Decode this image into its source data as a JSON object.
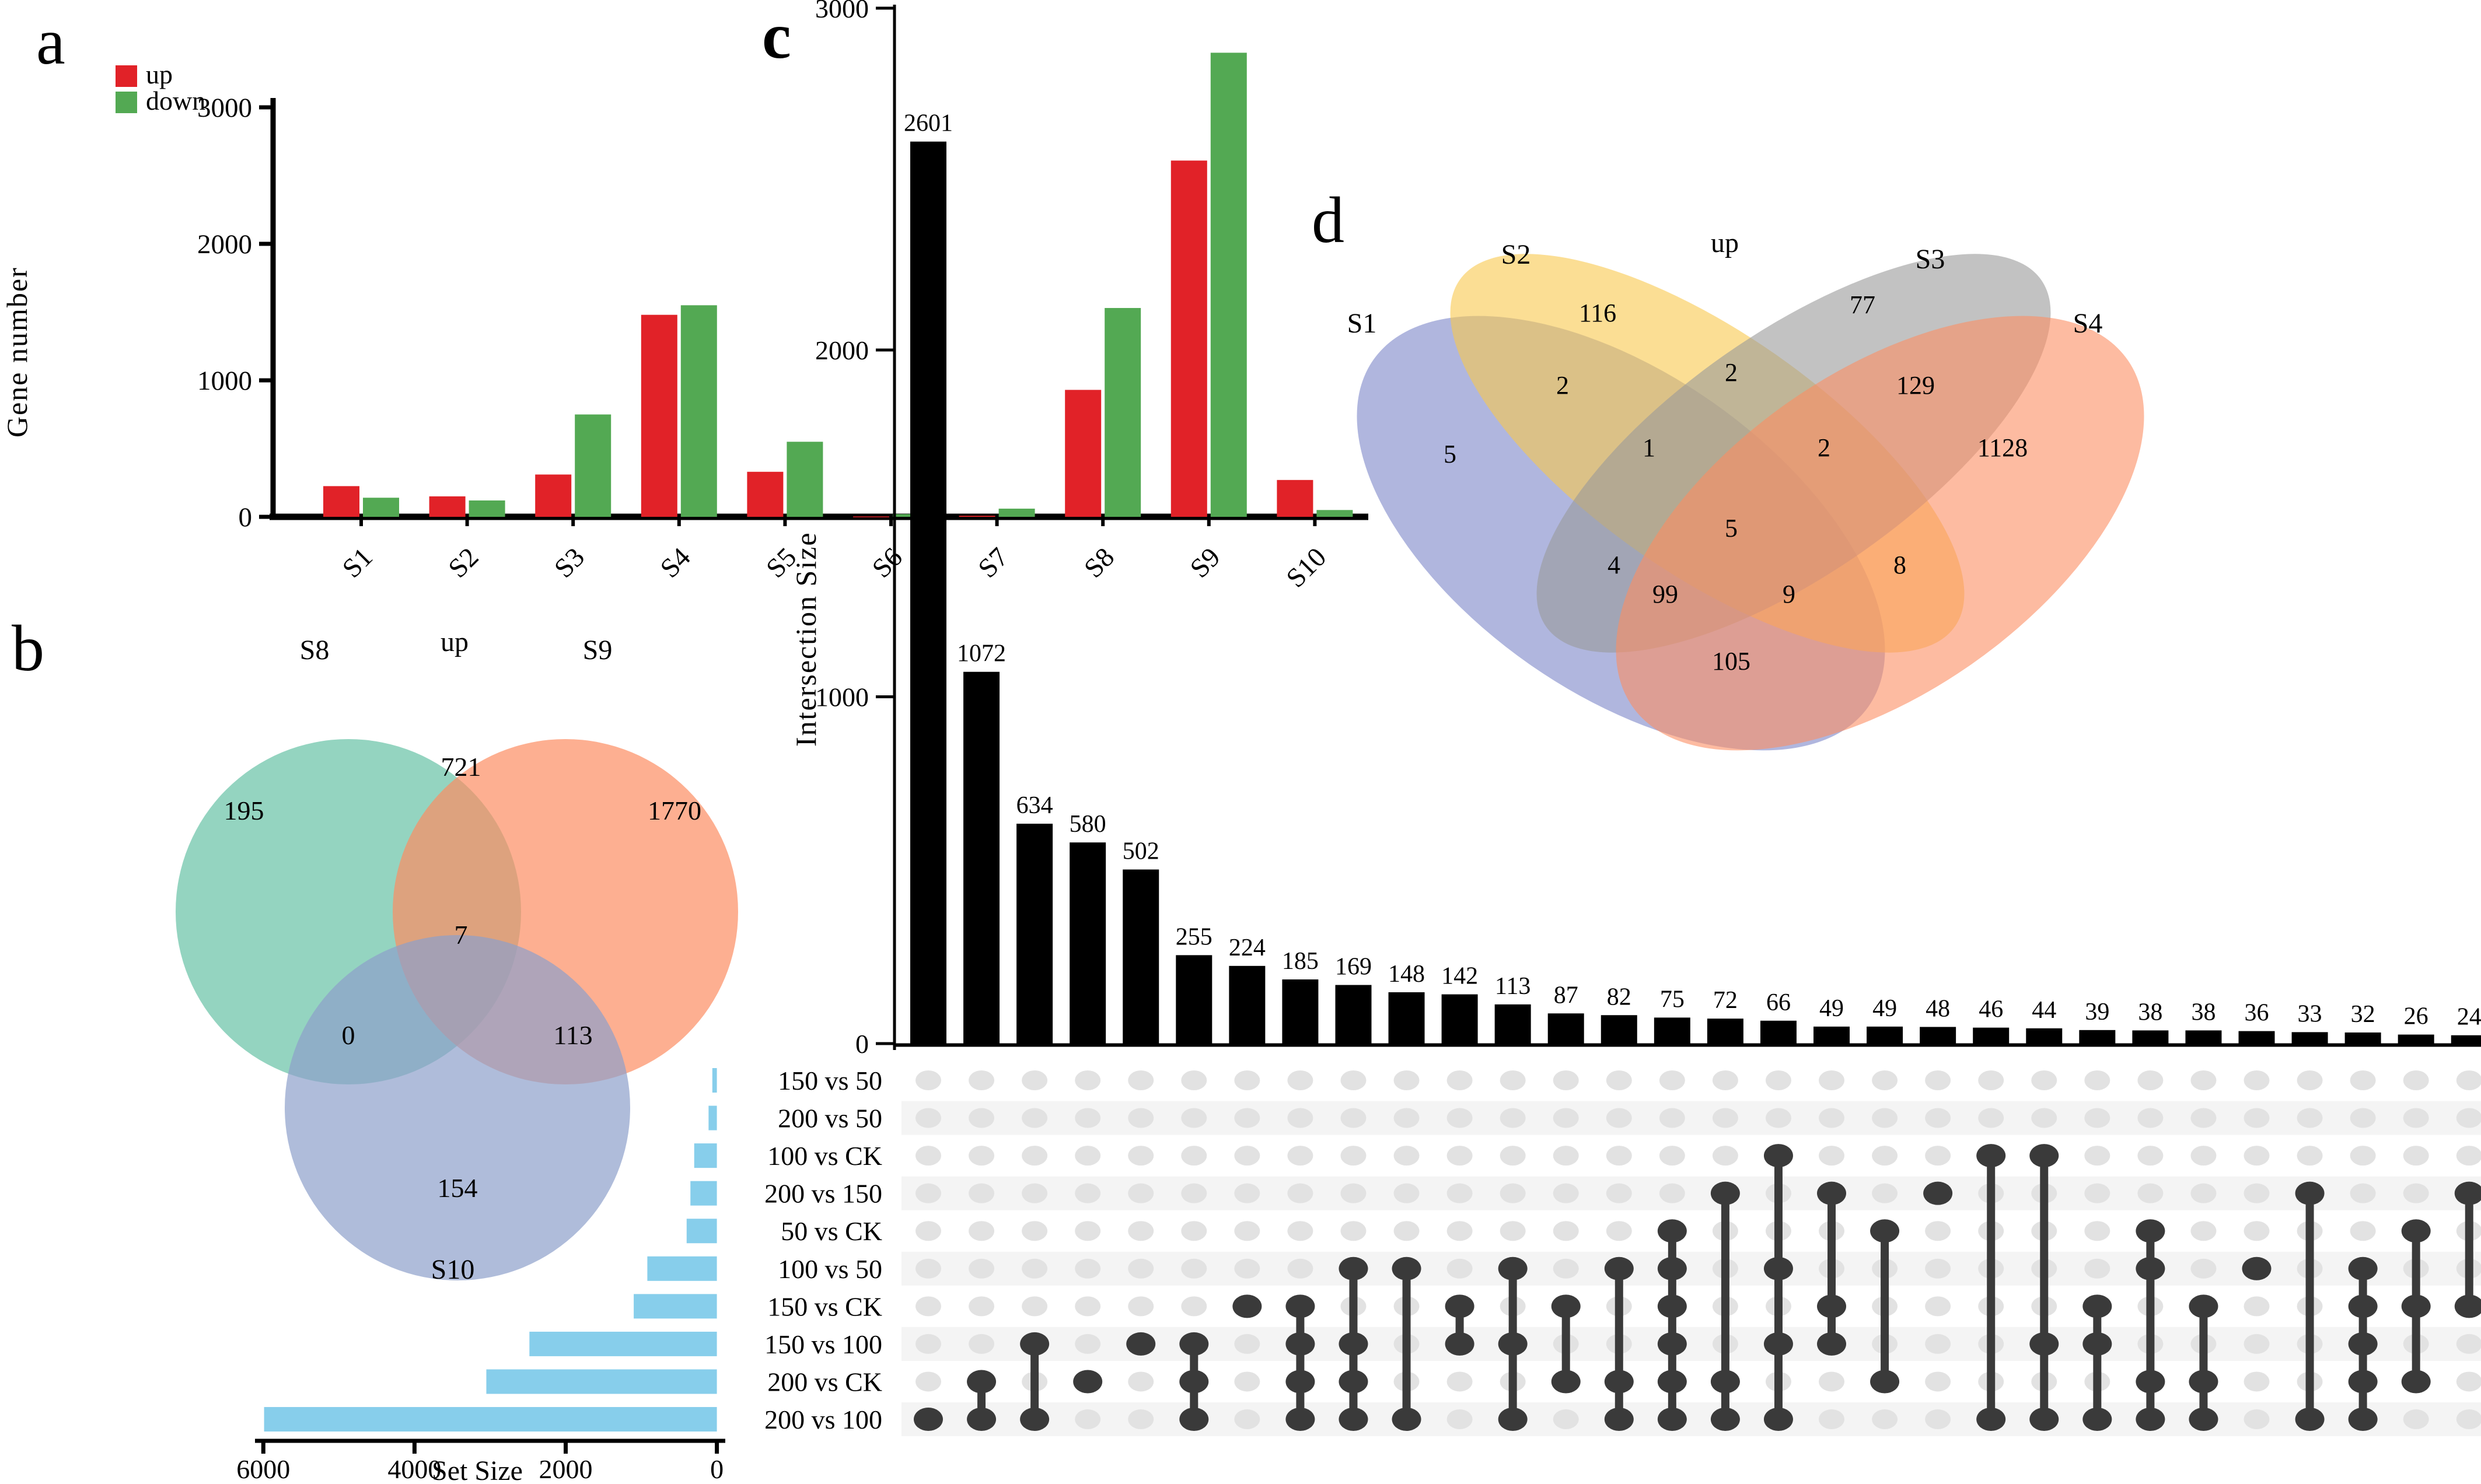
{
  "figure_labels": {
    "a": "a",
    "b": "b",
    "c": "c",
    "d": "d"
  },
  "axis_titles": {
    "gene_number": "Gene number",
    "intersection_size": "Intersection Size",
    "set_size": "Set Size"
  },
  "chart_data": [
    {
      "id": "a",
      "type": "bar",
      "ylabel": "Gene number",
      "ylim": [
        0,
        3400
      ],
      "yticks": [
        0,
        1000,
        2000,
        3000
      ],
      "categories": [
        "S1",
        "S2",
        "S3",
        "S4",
        "S5",
        "S6",
        "S7",
        "S8",
        "S9",
        "S10"
      ],
      "series": [
        {
          "name": "up",
          "color": "#E12228",
          "values": [
            225,
            150,
            310,
            1480,
            330,
            3,
            8,
            930,
            2610,
            270
          ]
        },
        {
          "name": "down",
          "color": "#53A953",
          "values": [
            140,
            120,
            750,
            1550,
            550,
            20,
            60,
            1530,
            3400,
            50
          ]
        }
      ],
      "legend_position": "top-left",
      "grid": false
    },
    {
      "id": "b",
      "type": "venn3",
      "title": "up",
      "sets": [
        "S8",
        "S9",
        "S10"
      ],
      "colors": [
        "#66C2A5",
        "#FC8D62",
        "#8DA0CB"
      ],
      "regions": {
        "S8": 195,
        "S9": 1770,
        "S10": 154,
        "S8∩S9": 721,
        "S8∩S10": 0,
        "S9∩S10": 113,
        "S8∩S9∩S10": 7
      }
    },
    {
      "id": "c",
      "type": "upset",
      "ylabel": "Intersection Size",
      "ylim": [
        0,
        3000
      ],
      "yticks": [
        0,
        1000,
        2000,
        3000
      ],
      "set_size_axis": {
        "label": "Set Size",
        "ticks": [
          6000,
          4000,
          2000,
          0
        ],
        "max": 6200
      },
      "bar_color": "#000000",
      "set_bar_color": "#87CEEB",
      "dot_active_color": "#3A3A3A",
      "dot_inactive_color": "#E2E2E2",
      "stripe_color": "#F4F4F4",
      "sets": [
        {
          "name": "150 vs 50",
          "size": 60
        },
        {
          "name": "200 vs 50",
          "size": 110
        },
        {
          "name": "100 vs CK",
          "size": 300
        },
        {
          "name": "200 vs 150",
          "size": 350
        },
        {
          "name": "50 vs CK",
          "size": 400
        },
        {
          "name": "100 vs 50",
          "size": 920
        },
        {
          "name": "150 vs CK",
          "size": 1100
        },
        {
          "name": "150 vs 100",
          "size": 2480
        },
        {
          "name": "200 vs CK",
          "size": 3050
        },
        {
          "name": "200 vs 100",
          "size": 5990
        }
      ],
      "intersections": [
        {
          "size": 2601,
          "sets": [
            "200 vs 100"
          ]
        },
        {
          "size": 1072,
          "sets": [
            "200 vs CK",
            "200 vs 100"
          ]
        },
        {
          "size": 634,
          "sets": [
            "150 vs 100",
            "200 vs 100"
          ]
        },
        {
          "size": 580,
          "sets": [
            "200 vs CK"
          ]
        },
        {
          "size": 502,
          "sets": [
            "150 vs 100"
          ]
        },
        {
          "size": 255,
          "sets": [
            "150 vs 100",
            "200 vs CK",
            "200 vs 100"
          ]
        },
        {
          "size": 224,
          "sets": [
            "150 vs CK"
          ]
        },
        {
          "size": 185,
          "sets": [
            "150 vs CK",
            "150 vs 100",
            "200 vs CK",
            "200 vs 100"
          ]
        },
        {
          "size": 169,
          "sets": [
            "100 vs 50",
            "150 vs 100",
            "200 vs CK",
            "200 vs 100"
          ]
        },
        {
          "size": 148,
          "sets": [
            "100 vs 50",
            "200 vs 100"
          ]
        },
        {
          "size": 142,
          "sets": [
            "150 vs CK",
            "150 vs 100"
          ]
        },
        {
          "size": 113,
          "sets": [
            "100 vs 50",
            "150 vs 100",
            "200 vs 100"
          ]
        },
        {
          "size": 87,
          "sets": [
            "150 vs CK",
            "200 vs CK"
          ]
        },
        {
          "size": 82,
          "sets": [
            "100 vs 50",
            "200 vs CK",
            "200 vs 100"
          ]
        },
        {
          "size": 75,
          "sets": [
            "50 vs CK",
            "100 vs 50",
            "150 vs CK",
            "150 vs 100",
            "200 vs CK",
            "200 vs 100"
          ]
        },
        {
          "size": 72,
          "sets": [
            "200 vs 150",
            "200 vs CK",
            "200 vs 100"
          ]
        },
        {
          "size": 66,
          "sets": [
            "100 vs CK",
            "100 vs 50",
            "150 vs 100",
            "200 vs 100"
          ]
        },
        {
          "size": 49,
          "sets": [
            "200 vs 150",
            "150 vs CK",
            "150 vs 100"
          ]
        },
        {
          "size": 49,
          "sets": [
            "50 vs CK",
            "200 vs CK"
          ]
        },
        {
          "size": 48,
          "sets": [
            "200 vs 150"
          ]
        },
        {
          "size": 46,
          "sets": [
            "100 vs CK",
            "200 vs 100"
          ]
        },
        {
          "size": 44,
          "sets": [
            "100 vs CK",
            "150 vs 100",
            "200 vs 100"
          ]
        },
        {
          "size": 39,
          "sets": [
            "150 vs CK",
            "150 vs 100",
            "200 vs 100"
          ]
        },
        {
          "size": 38,
          "sets": [
            "50 vs CK",
            "100 vs 50",
            "200 vs CK",
            "200 vs 100"
          ]
        },
        {
          "size": 38,
          "sets": [
            "150 vs CK",
            "200 vs CK",
            "200 vs 100"
          ]
        },
        {
          "size": 36,
          "sets": [
            "100 vs 50"
          ]
        },
        {
          "size": 33,
          "sets": [
            "200 vs 150",
            "200 vs 100"
          ]
        },
        {
          "size": 32,
          "sets": [
            "100 vs 50",
            "150 vs CK",
            "150 vs 100",
            "200 vs CK",
            "200 vs 100"
          ]
        },
        {
          "size": 26,
          "sets": [
            "50 vs CK",
            "150 vs CK",
            "200 vs CK"
          ]
        },
        {
          "size": 24,
          "sets": [
            "200 vs 150",
            "150 vs CK"
          ]
        }
      ]
    },
    {
      "id": "d",
      "type": "venn4",
      "title": "up",
      "sets": [
        "S1",
        "S2",
        "S3",
        "S4"
      ],
      "colors": [
        "#7B86C8",
        "#F9C84D",
        "#9A9A9A",
        "#FC8D62"
      ],
      "regions": {
        "S1": 5,
        "S2": 116,
        "S3": 77,
        "S4": 1128,
        "S1∩S2": 2,
        "S2∩S3": 2,
        "S3∩S4": 129,
        "S1∩S3": 4,
        "S2∩S4": 8,
        "S1∩S4": 105,
        "S1∩S2∩S3": 1,
        "S2∩S3∩S4": 2,
        "S1∩S2∩S4": 9,
        "S1∩S3∩S4": 99,
        "S1∩S2∩S3∩S4": 5
      }
    }
  ]
}
